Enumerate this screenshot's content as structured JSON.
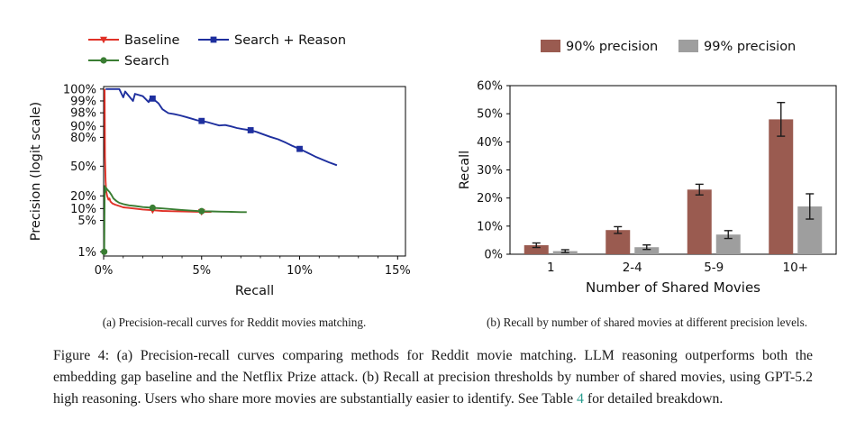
{
  "page": {
    "background": "#ffffff",
    "text_color": "#1a1a1a"
  },
  "figure": {
    "subcaption_a": "(a) Precision-recall curves for Reddit movies matching.",
    "subcaption_b": "(b) Recall by number of shared movies at different precision levels.",
    "caption": {
      "before_ref": "Figure 4: (a) Precision-recall curves comparing methods for Reddit movie matching. LLM reasoning outperforms both the embedding gap baseline and the Netflix Prize attack. (b) Recall at precision thresholds by number of shared movies, using GPT-5.2 high reasoning. Users who share more movies are substantially easier to identify. See Table ",
      "ref": "4",
      "after_ref": " for detailed breakdown.",
      "ref_color": "#2a9d8f"
    }
  },
  "chart_data": [
    {
      "type": "line",
      "name": "precision-recall-curves",
      "xlabel": "Recall",
      "ylabel": "Precision (logit scale)",
      "xlim": [
        0,
        15.4
      ],
      "x_ticks": [
        0,
        5,
        10,
        15
      ],
      "x_tick_labels": [
        "0%",
        "5%",
        "10%",
        "15%"
      ],
      "y_scale": "logit",
      "y_ticks": [
        100,
        99,
        98,
        90,
        80,
        50,
        20,
        10,
        5,
        1
      ],
      "y_tick_labels": [
        "100%",
        "99%",
        "98%",
        "90%",
        "80%",
        "50%",
        "20%",
        "10%",
        "5%",
        "1%"
      ],
      "y_anchor_map": [
        [
          100,
          0.015
        ],
        [
          99,
          0.085
        ],
        [
          98,
          0.155
        ],
        [
          90,
          0.235
        ],
        [
          80,
          0.3
        ],
        [
          50,
          0.47
        ],
        [
          20,
          0.645
        ],
        [
          10,
          0.72
        ],
        [
          5,
          0.79
        ],
        [
          1,
          0.975
        ]
      ],
      "legend_order": [
        "Baseline",
        "Search + Reason",
        "Search"
      ],
      "series": [
        {
          "name": "Baseline",
          "color": "#e03127",
          "marker": "triangle-down",
          "points": [
            [
              0.05,
              100
            ],
            [
              0.07,
              60
            ],
            [
              0.1,
              35
            ],
            [
              0.13,
              25
            ],
            [
              0.18,
              20
            ],
            [
              0.25,
              17
            ],
            [
              0.3,
              18
            ],
            [
              0.35,
              15.5
            ],
            [
              0.45,
              14
            ],
            [
              0.6,
              13
            ],
            [
              0.8,
              12
            ],
            [
              1.0,
              11
            ],
            [
              1.3,
              10.5
            ],
            [
              1.6,
              10
            ],
            [
              2.0,
              9.6
            ],
            [
              2.5,
              9.3
            ],
            [
              3.0,
              9.0
            ],
            [
              3.5,
              8.9
            ],
            [
              4.0,
              8.8
            ],
            [
              4.5,
              8.7
            ],
            [
              5.0,
              8.6
            ],
            [
              5.5,
              8.6
            ]
          ],
          "marker_points": [
            [
              2.5,
              9.3
            ],
            [
              5.0,
              8.6
            ]
          ]
        },
        {
          "name": "Search",
          "color": "#3a7d33",
          "marker": "circle",
          "points": [
            [
              0.03,
              1
            ],
            [
              0.05,
              18
            ],
            [
              0.06,
              30
            ],
            [
              0.09,
              24
            ],
            [
              0.13,
              28
            ],
            [
              0.2,
              26
            ],
            [
              0.3,
              24
            ],
            [
              0.4,
              21
            ],
            [
              0.5,
              18
            ],
            [
              0.65,
              16
            ],
            [
              0.8,
              14.5
            ],
            [
              1.0,
              13.5
            ],
            [
              1.3,
              12.5
            ],
            [
              1.6,
              12
            ],
            [
              2.0,
              11.2
            ],
            [
              2.5,
              10.6
            ],
            [
              3.0,
              10.1
            ],
            [
              3.5,
              9.7
            ],
            [
              4.0,
              9.4
            ],
            [
              4.5,
              9.1
            ],
            [
              5.0,
              8.9
            ],
            [
              5.5,
              8.8
            ],
            [
              6.0,
              8.7
            ],
            [
              6.5,
              8.6
            ],
            [
              7.0,
              8.5
            ],
            [
              7.3,
              8.5
            ]
          ],
          "marker_points": [
            [
              0.03,
              1
            ],
            [
              2.5,
              10.6
            ],
            [
              5.0,
              8.9
            ]
          ]
        },
        {
          "name": "Search + Reason",
          "color": "#1e2f9e",
          "marker": "square",
          "points": [
            [
              0.1,
              100
            ],
            [
              0.8,
              100
            ],
            [
              1.0,
              99.3
            ],
            [
              1.1,
              99.8
            ],
            [
              1.5,
              99.0
            ],
            [
              1.6,
              99.6
            ],
            [
              2.0,
              99.4
            ],
            [
              2.3,
              98.9
            ],
            [
              2.4,
              99.3
            ],
            [
              2.5,
              99.2
            ],
            [
              2.8,
              98.8
            ],
            [
              3.0,
              98.3
            ],
            [
              3.3,
              97.8
            ],
            [
              3.6,
              97.2
            ],
            [
              3.9,
              96.5
            ],
            [
              4.2,
              95.5
            ],
            [
              4.5,
              94.5
            ],
            [
              4.8,
              93.5
            ],
            [
              5.0,
              93.2
            ],
            [
              5.3,
              92.5
            ],
            [
              5.6,
              91.5
            ],
            [
              5.9,
              90.5
            ],
            [
              6.2,
              90.8
            ],
            [
              6.5,
              90.0
            ],
            [
              6.8,
              88.5
            ],
            [
              7.1,
              87.5
            ],
            [
              7.5,
              86.5
            ],
            [
              7.8,
              85.0
            ],
            [
              8.1,
              83.0
            ],
            [
              8.5,
              80.5
            ],
            [
              8.9,
              78.0
            ],
            [
              9.3,
              74.5
            ],
            [
              9.6,
              71.5
            ],
            [
              10.0,
              68.0
            ],
            [
              10.4,
              64.0
            ],
            [
              10.8,
              60.0
            ],
            [
              11.2,
              56.5
            ],
            [
              11.5,
              54.0
            ],
            [
              11.9,
              51.0
            ]
          ],
          "marker_points": [
            [
              2.5,
              99.2
            ],
            [
              5.0,
              93.2
            ],
            [
              7.5,
              86.5
            ],
            [
              10.0,
              68.0
            ]
          ]
        }
      ]
    },
    {
      "type": "bar",
      "name": "recall-by-shared-movies",
      "categories": [
        "1",
        "2-4",
        "5-9",
        "10+"
      ],
      "series": [
        {
          "name": "90% precision",
          "color": "#9a5b50",
          "values": [
            3.2,
            8.6,
            23,
            48
          ],
          "errors": [
            0.8,
            1.2,
            1.9,
            6
          ]
        },
        {
          "name": "99% precision",
          "color": "#9e9e9e",
          "values": [
            1.1,
            2.5,
            7,
            17
          ],
          "errors": [
            0.5,
            0.8,
            1.4,
            4.5
          ]
        }
      ],
      "xlabel": "Number of Shared Movies",
      "ylabel": "Recall",
      "ylim": [
        0,
        60
      ],
      "y_ticks": [
        0,
        10,
        20,
        30,
        40,
        50,
        60
      ],
      "y_tick_labels": [
        "0%",
        "10%",
        "20%",
        "30%",
        "40%",
        "50%",
        "60%"
      ],
      "error_bar_color": "#1c1c1c",
      "legend_position": "top"
    }
  ]
}
